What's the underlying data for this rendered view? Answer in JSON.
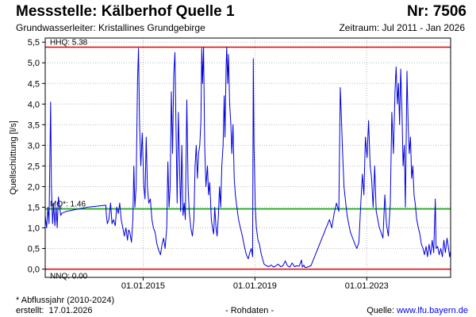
{
  "header": {
    "title": "Messstelle: Kälberhof Quelle 1",
    "nr": "Nr: 7506",
    "aquifer": "Grundwasserleiter: Kristallines Grundgebirge",
    "period": "Zeitraum: Jul 2011 - Jan 2026"
  },
  "footer": {
    "note": "* Abflussjahr (2010-2024)",
    "created_label": "erstellt:",
    "created_date": "17.01.2026",
    "rohdaten": "- Rohdaten -",
    "source_label": "Quelle:",
    "source_url": "www.lfu.bayern.de"
  },
  "colors": {
    "series": "#0000dd",
    "hhq": "#dd0000",
    "nnq": "#dd0000",
    "mq": "#009900",
    "grid": "#bbbbbb"
  },
  "chart_data": {
    "type": "line",
    "title": "Messstelle: Kälberhof Quelle 1",
    "xlabel": "",
    "ylabel": "Quellschüttung [l/s]",
    "xlim": [
      "2011-07-01",
      "2026-01-01"
    ],
    "ylim": [
      -0.2,
      5.6
    ],
    "grid": true,
    "y_ticks": [
      {
        "value": 0.0,
        "label": "0,0"
      },
      {
        "value": 0.5,
        "label": "0,5"
      },
      {
        "value": 1.0,
        "label": "1,0"
      },
      {
        "value": 1.5,
        "label": "1,5"
      },
      {
        "value": 2.0,
        "label": "2,0"
      },
      {
        "value": 2.5,
        "label": "2,5"
      },
      {
        "value": 3.0,
        "label": "3,0"
      },
      {
        "value": 3.5,
        "label": "3,5"
      },
      {
        "value": 4.0,
        "label": "4,0"
      },
      {
        "value": 4.5,
        "label": "4,5"
      },
      {
        "value": 5.0,
        "label": "5,0"
      },
      {
        "value": 5.5,
        "label": "5,5"
      }
    ],
    "x_ticks": [
      {
        "value": "2015-01-01",
        "label": "01.01.2015"
      },
      {
        "value": "2019-01-01",
        "label": "01.01.2019"
      },
      {
        "value": "2023-01-01",
        "label": "01.01.2023"
      }
    ],
    "reference_lines": [
      {
        "name": "HHQ",
        "label": "HHQ: 5.38",
        "value": 5.38,
        "color": "#dd0000"
      },
      {
        "name": "MQ",
        "label": "MQ*: 1.46",
        "value": 1.46,
        "color": "#009900"
      },
      {
        "name": "NNQ",
        "label": "NNQ: 0.00",
        "value": 0.0,
        "color": "#dd0000"
      }
    ],
    "series": [
      {
        "color": "#0000dd",
        "points": [
          [
            "2011-07-01",
            1.3
          ],
          [
            "2011-07-20",
            1.0
          ],
          [
            "2011-08-05",
            1.5
          ],
          [
            "2011-08-20",
            1.1
          ],
          [
            "2011-09-10",
            4.05
          ],
          [
            "2011-09-20",
            2.0
          ],
          [
            "2011-10-05",
            1.1
          ],
          [
            "2011-10-20",
            1.6
          ],
          [
            "2011-11-05",
            1.05
          ],
          [
            "2011-11-20",
            1.5
          ],
          [
            "2011-12-05",
            1.0
          ],
          [
            "2011-12-20",
            1.75
          ],
          [
            "2012-01-05",
            1.5
          ],
          [
            "2012-01-20",
            1.3
          ],
          [
            "2012-02-01",
            1.35
          ],
          [
            "2012-04-01",
            1.4
          ],
          [
            "2013-01-01",
            1.5
          ],
          [
            "2013-09-01",
            1.55
          ],
          [
            "2013-09-05",
            1.35
          ],
          [
            "2013-09-20",
            1.1
          ],
          [
            "2013-10-10",
            1.2
          ],
          [
            "2013-11-01",
            1.6
          ],
          [
            "2013-11-20",
            1.1
          ],
          [
            "2013-12-10",
            1.2
          ],
          [
            "2014-01-01",
            1.05
          ],
          [
            "2014-01-20",
            1.5
          ],
          [
            "2014-02-10",
            1.35
          ],
          [
            "2014-03-01",
            1.6
          ],
          [
            "2014-03-20",
            1.2
          ],
          [
            "2014-04-10",
            1.0
          ],
          [
            "2014-05-01",
            0.8
          ],
          [
            "2014-05-20",
            1.0
          ],
          [
            "2014-06-10",
            0.7
          ],
          [
            "2014-06-25",
            0.95
          ],
          [
            "2014-07-10",
            0.9
          ],
          [
            "2014-08-01",
            0.65
          ],
          [
            "2014-08-20",
            1.2
          ],
          [
            "2014-09-01",
            2.5
          ],
          [
            "2014-09-15",
            1.5
          ],
          [
            "2014-10-01",
            2.0
          ],
          [
            "2014-10-20",
            4.6
          ],
          [
            "2014-11-01",
            5.35
          ],
          [
            "2014-11-15",
            3.5
          ],
          [
            "2014-12-01",
            2.5
          ],
          [
            "2014-12-20",
            3.3
          ],
          [
            "2015-01-10",
            2.0
          ],
          [
            "2015-01-25",
            1.7
          ],
          [
            "2015-02-10",
            3.2
          ],
          [
            "2015-02-25",
            2.0
          ],
          [
            "2015-03-15",
            1.6
          ],
          [
            "2015-04-05",
            1.7
          ],
          [
            "2015-04-25",
            1.2
          ],
          [
            "2015-05-15",
            1.0
          ],
          [
            "2015-06-05",
            0.9
          ],
          [
            "2015-07-01",
            0.6
          ],
          [
            "2015-07-25",
            0.45
          ],
          [
            "2015-08-15",
            0.35
          ],
          [
            "2015-09-05",
            0.6
          ],
          [
            "2015-09-25",
            0.75
          ],
          [
            "2015-10-15",
            0.5
          ],
          [
            "2015-11-05",
            1.0
          ],
          [
            "2015-11-20",
            2.6
          ],
          [
            "2015-12-05",
            1.5
          ],
          [
            "2015-12-20",
            2.0
          ],
          [
            "2016-01-05",
            4.3
          ],
          [
            "2016-01-20",
            2.8
          ],
          [
            "2016-02-05",
            4.7
          ],
          [
            "2016-02-20",
            5.25
          ],
          [
            "2016-03-05",
            3.5
          ],
          [
            "2016-03-20",
            1.6
          ],
          [
            "2016-04-05",
            3.8
          ],
          [
            "2016-04-20",
            2.5
          ],
          [
            "2016-05-05",
            1.4
          ],
          [
            "2016-05-20",
            3.0
          ],
          [
            "2016-06-05",
            1.3
          ],
          [
            "2016-06-20",
            1.6
          ],
          [
            "2016-07-05",
            1.2
          ],
          [
            "2016-07-25",
            4.1
          ],
          [
            "2016-08-10",
            2.0
          ],
          [
            "2016-08-25",
            1.4
          ],
          [
            "2016-09-15",
            1.0
          ],
          [
            "2016-10-05",
            0.8
          ],
          [
            "2016-10-25",
            1.2
          ],
          [
            "2016-11-10",
            2.5
          ],
          [
            "2016-11-25",
            3.0
          ],
          [
            "2016-12-10",
            2.2
          ],
          [
            "2016-12-25",
            2.8
          ],
          [
            "2017-01-10",
            3.0
          ],
          [
            "2017-01-25",
            3.6
          ],
          [
            "2017-02-05",
            5.35
          ],
          [
            "2017-02-15",
            4.5
          ],
          [
            "2017-02-28",
            5.38
          ],
          [
            "2017-03-15",
            3.0
          ],
          [
            "2017-04-01",
            2.0
          ],
          [
            "2017-04-20",
            2.5
          ],
          [
            "2017-05-05",
            1.8
          ],
          [
            "2017-05-20",
            2.1
          ],
          [
            "2017-06-10",
            1.2
          ],
          [
            "2017-06-25",
            1.0
          ],
          [
            "2017-07-10",
            0.85
          ],
          [
            "2017-07-25",
            1.5
          ],
          [
            "2017-08-10",
            1.0
          ],
          [
            "2017-08-25",
            0.8
          ],
          [
            "2017-09-10",
            1.3
          ],
          [
            "2017-09-25",
            2.0
          ],
          [
            "2017-10-10",
            1.5
          ],
          [
            "2017-10-25",
            2.5
          ],
          [
            "2017-11-10",
            3.0
          ],
          [
            "2017-11-25",
            4.2
          ],
          [
            "2017-12-05",
            3.2
          ],
          [
            "2017-12-20",
            4.9
          ],
          [
            "2017-12-28",
            5.38
          ],
          [
            "2018-01-10",
            4.5
          ],
          [
            "2018-01-20",
            5.2
          ],
          [
            "2018-02-05",
            4.0
          ],
          [
            "2018-02-20",
            3.5
          ],
          [
            "2018-03-05",
            2.8
          ],
          [
            "2018-03-20",
            3.5
          ],
          [
            "2018-04-05",
            2.2
          ],
          [
            "2018-04-20",
            1.8
          ],
          [
            "2018-05-10",
            1.5
          ],
          [
            "2018-06-01",
            1.2
          ],
          [
            "2018-06-25",
            1.0
          ],
          [
            "2018-07-20",
            0.8
          ],
          [
            "2018-08-15",
            0.55
          ],
          [
            "2018-09-10",
            0.35
          ],
          [
            "2018-10-05",
            0.25
          ],
          [
            "2018-10-25",
            0.4
          ],
          [
            "2018-11-15",
            0.5
          ],
          [
            "2018-12-01",
            0.3
          ],
          [
            "2018-12-10",
            5.1
          ],
          [
            "2018-12-20",
            3.0
          ],
          [
            "2019-01-05",
            1.5
          ],
          [
            "2019-01-20",
            1.0
          ],
          [
            "2019-02-10",
            0.7
          ],
          [
            "2019-03-01",
            0.6
          ],
          [
            "2019-03-20",
            0.4
          ],
          [
            "2019-04-10",
            0.25
          ],
          [
            "2019-05-01",
            0.12
          ],
          [
            "2019-06-01",
            0.08
          ],
          [
            "2019-07-01",
            0.06
          ],
          [
            "2019-08-01",
            0.1
          ],
          [
            "2019-09-01",
            0.05
          ],
          [
            "2019-10-01",
            0.08
          ],
          [
            "2019-11-01",
            0.12
          ],
          [
            "2019-12-01",
            0.06
          ],
          [
            "2020-01-01",
            0.08
          ],
          [
            "2020-02-01",
            0.2
          ],
          [
            "2020-03-01",
            0.08
          ],
          [
            "2020-04-01",
            0.05
          ],
          [
            "2020-05-01",
            0.15
          ],
          [
            "2020-06-01",
            0.06
          ],
          [
            "2020-07-01",
            0.08
          ],
          [
            "2020-08-01",
            0.07
          ],
          [
            "2020-09-01",
            0.22
          ],
          [
            "2020-09-10",
            0.05
          ],
          [
            "2020-10-01",
            0.1
          ],
          [
            "2020-10-15",
            0.04
          ],
          [
            "2020-11-01",
            0.04
          ],
          [
            "2021-01-01",
            0.08
          ],
          [
            "2021-09-01",
            1.2
          ],
          [
            "2021-10-01",
            1.0
          ],
          [
            "2021-11-01",
            1.35
          ],
          [
            "2021-12-01",
            1.6
          ],
          [
            "2022-01-01",
            1.4
          ],
          [
            "2022-01-20",
            4.4
          ],
          [
            "2022-02-01",
            3.8
          ],
          [
            "2022-02-20",
            2.8
          ],
          [
            "2022-03-10",
            2.0
          ],
          [
            "2022-04-01",
            1.6
          ],
          [
            "2022-04-20",
            1.3
          ],
          [
            "2022-05-10",
            1.1
          ],
          [
            "2022-06-01",
            0.9
          ],
          [
            "2022-07-01",
            0.75
          ],
          [
            "2022-08-01",
            0.6
          ],
          [
            "2022-08-25",
            0.5
          ],
          [
            "2022-09-20",
            0.65
          ],
          [
            "2022-10-15",
            1.6
          ],
          [
            "2022-11-05",
            2.3
          ],
          [
            "2022-11-25",
            1.8
          ],
          [
            "2022-12-15",
            3.2
          ],
          [
            "2023-01-05",
            2.7
          ],
          [
            "2023-01-25",
            3.6
          ],
          [
            "2023-02-15",
            2.5
          ],
          [
            "2023-03-05",
            2.2
          ],
          [
            "2023-03-25",
            1.5
          ],
          [
            "2023-04-15",
            2.5
          ],
          [
            "2023-05-05",
            1.4
          ],
          [
            "2023-05-25",
            1.2
          ],
          [
            "2023-06-15",
            1.0
          ],
          [
            "2023-07-05",
            0.9
          ],
          [
            "2023-08-01",
            0.75
          ],
          [
            "2023-08-25",
            1.8
          ],
          [
            "2023-09-15",
            1.1
          ],
          [
            "2023-10-10",
            0.8
          ],
          [
            "2023-11-05",
            1.6
          ],
          [
            "2023-11-25",
            3.8
          ],
          [
            "2023-12-15",
            2.8
          ],
          [
            "2024-01-05",
            4.3
          ],
          [
            "2024-01-20",
            4.9
          ],
          [
            "2024-02-05",
            4.0
          ],
          [
            "2024-02-20",
            4.5
          ],
          [
            "2024-03-05",
            3.5
          ],
          [
            "2024-03-20",
            4.85
          ],
          [
            "2024-04-05",
            3.8
          ],
          [
            "2024-04-20",
            2.5
          ],
          [
            "2024-05-05",
            3.0
          ],
          [
            "2024-05-20",
            1.5
          ],
          [
            "2024-06-10",
            4.8
          ],
          [
            "2024-06-25",
            3.5
          ],
          [
            "2024-07-10",
            2.8
          ],
          [
            "2024-07-25",
            3.2
          ],
          [
            "2024-08-10",
            2.2
          ],
          [
            "2024-08-25",
            2.5
          ],
          [
            "2024-09-10",
            1.8
          ],
          [
            "2024-09-25",
            1.6
          ],
          [
            "2024-10-15",
            1.2
          ],
          [
            "2024-11-05",
            1.0
          ],
          [
            "2024-11-25",
            0.85
          ],
          [
            "2024-12-15",
            0.6
          ],
          [
            "2025-01-05",
            0.5
          ],
          [
            "2025-01-25",
            0.35
          ],
          [
            "2025-02-15",
            0.55
          ],
          [
            "2025-03-05",
            0.3
          ],
          [
            "2025-03-25",
            0.6
          ],
          [
            "2025-04-15",
            0.35
          ],
          [
            "2025-05-05",
            0.7
          ],
          [
            "2025-05-25",
            0.4
          ],
          [
            "2025-06-15",
            1.7
          ],
          [
            "2025-06-25",
            0.5
          ],
          [
            "2025-07-15",
            0.55
          ],
          [
            "2025-08-05",
            0.35
          ],
          [
            "2025-08-25",
            0.5
          ],
          [
            "2025-09-15",
            0.3
          ],
          [
            "2025-10-05",
            0.7
          ],
          [
            "2025-10-25",
            0.4
          ],
          [
            "2025-11-15",
            0.75
          ],
          [
            "2025-12-05",
            0.5
          ],
          [
            "2025-12-20",
            0.3
          ],
          [
            "2026-01-01",
            0.45
          ]
        ]
      }
    ]
  }
}
